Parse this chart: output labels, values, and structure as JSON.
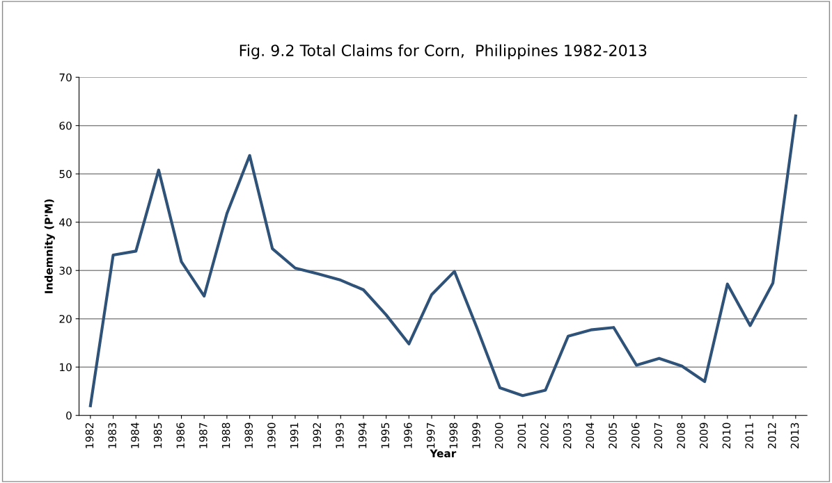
{
  "chart_data": {
    "type": "line",
    "title": "Fig. 9.2 Total Claims for Corn,  Philippines 1982-2013",
    "xlabel": "Year",
    "ylabel": "Indemnity (P'M)",
    "categories": [
      "1982",
      "1983",
      "1984",
      "1985",
      "1986",
      "1987",
      "1988",
      "1989",
      "1990",
      "1991",
      "1992",
      "1993",
      "1994",
      "1995",
      "1996",
      "1997",
      "1998",
      "1999",
      "2000",
      "2001",
      "2002",
      "2003",
      "2004",
      "2005",
      "2006",
      "2007",
      "2008",
      "2009",
      "2010",
      "2011",
      "2012",
      "2013"
    ],
    "series": [
      {
        "color": "#2f5279",
        "values": [
          2,
          33.2,
          34,
          50.8,
          31.8,
          24.7,
          41.8,
          53.8,
          34.5,
          30.5,
          29.3,
          28,
          26,
          20.8,
          14.8,
          25,
          29.8,
          18,
          5.7,
          4.1,
          5.2,
          16.4,
          17.7,
          18.2,
          10.4,
          11.8,
          10.2,
          7,
          27.2,
          18.6,
          27.4,
          62
        ]
      }
    ],
    "ylim": [
      0,
      70
    ],
    "yticks": [
      0,
      10,
      20,
      30,
      40,
      50,
      60,
      70
    ],
    "grid": "y",
    "legend": false,
    "marker": "none",
    "line_style": "solid"
  }
}
